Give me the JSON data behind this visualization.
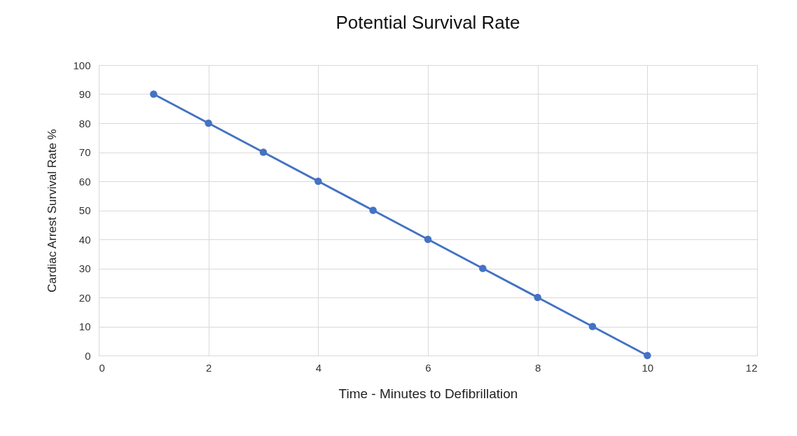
{
  "chart_data": {
    "type": "line",
    "title": "Potential Survival Rate",
    "xlabel": "Time - Minutes to Defibrillation",
    "ylabel": "Cardiac Arrest Survival Rate %",
    "x": [
      1,
      2,
      3,
      4,
      5,
      6,
      7,
      8,
      9,
      10
    ],
    "series": [
      {
        "color": "#4472c4",
        "values": [
          90,
          80,
          70,
          60,
          50,
          40,
          30,
          20,
          10,
          0
        ]
      }
    ],
    "xlim": [
      0,
      12
    ],
    "xticks": [
      0,
      2,
      4,
      6,
      8,
      10,
      12
    ],
    "ylim": [
      0,
      100
    ],
    "yticks": [
      0,
      10,
      20,
      30,
      40,
      50,
      60,
      70,
      80,
      90,
      100
    ],
    "grid": true,
    "marker": "circle",
    "line_style": "solid"
  }
}
